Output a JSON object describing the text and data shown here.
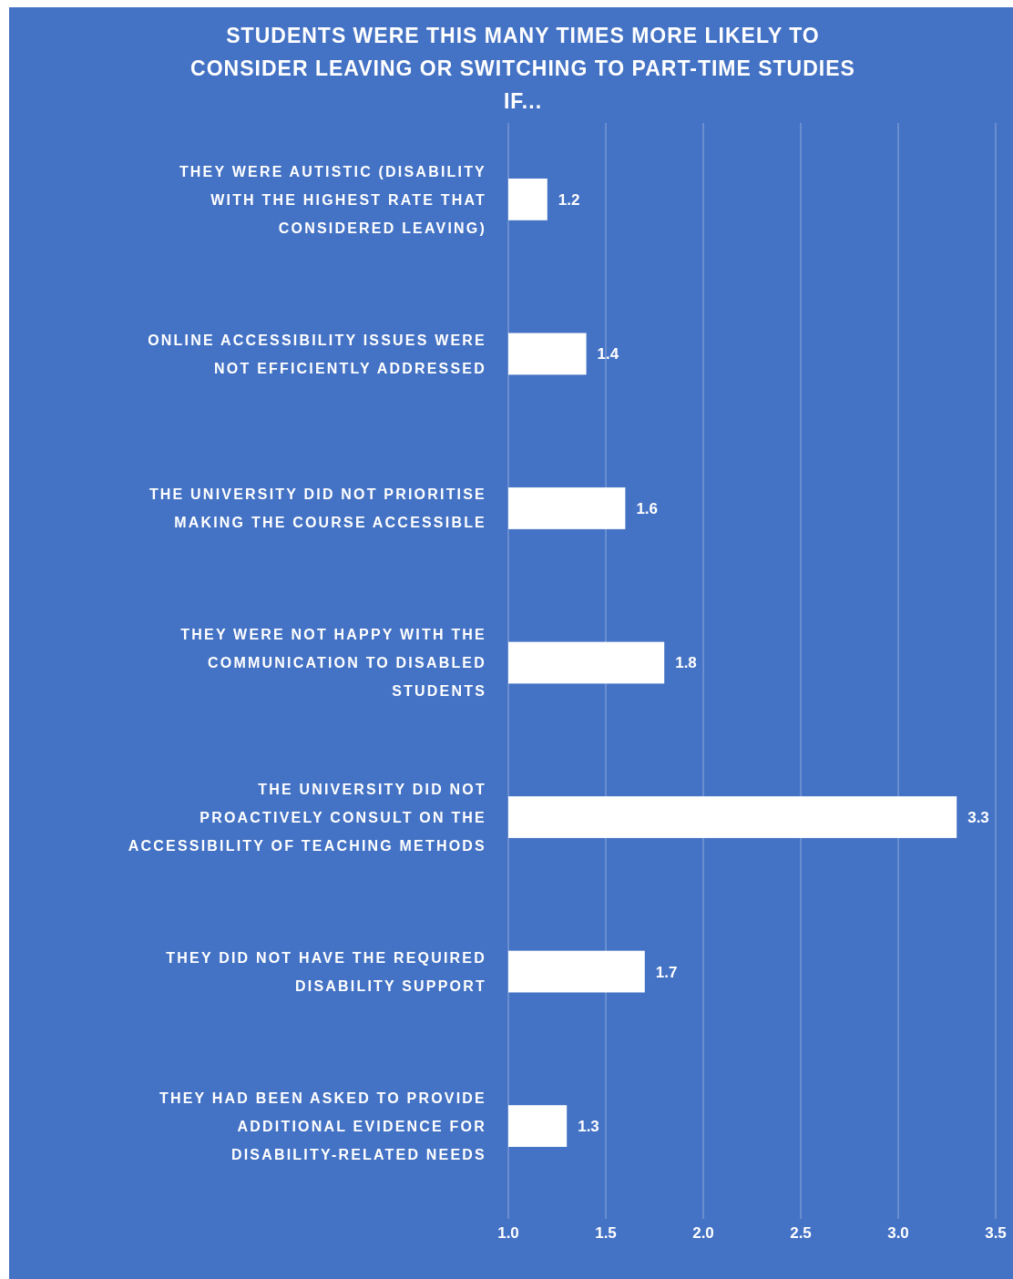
{
  "chart_data": {
    "type": "bar",
    "orientation": "horizontal",
    "title": "STUDENTS WERE THIS MANY TIMES MORE LIKELY TO CONSIDER LEAVING OR SWITCHING TO PART-TIME STUDIES IF...",
    "categories": [
      "THEY WERE AUTISTIC (DISABILITY WITH THE HIGHEST RATE THAT CONSIDERED LEAVING)",
      "ONLINE ACCESSIBILITY ISSUES WERE NOT EFFICIENTLY ADDRESSED",
      "THE UNIVERSITY DID NOT PRIORITISE MAKING THE COURSE ACCESSIBLE",
      "THEY WERE NOT HAPPY WITH THE COMMUNICATION TO DISABLED STUDENTS",
      "THE UNIVERSITY DID NOT PROACTIVELY CONSULT ON THE ACCESSIBILITY OF TEACHING METHODS",
      "THEY DID NOT HAVE THE REQUIRED DISABILITY SUPPORT",
      "THEY HAD BEEN ASKED TO PROVIDE ADDITIONAL EVIDENCE FOR DISABILITY-RELATED NEEDS"
    ],
    "values": [
      1.2,
      1.4,
      1.6,
      1.8,
      3.3,
      1.7,
      1.3
    ],
    "color": "#ffffff",
    "xlim": [
      1,
      3.5
    ],
    "xticks": [
      {
        "value": 1,
        "label": "1.0"
      },
      {
        "value": 1.5,
        "label": "1.5"
      },
      {
        "value": 2,
        "label": "2.0"
      },
      {
        "value": 2.5,
        "label": "2.5"
      },
      {
        "value": 3,
        "label": "3.0"
      },
      {
        "value": 3.5,
        "label": "3.5"
      }
    ],
    "grid": "x",
    "data_labels": true
  }
}
